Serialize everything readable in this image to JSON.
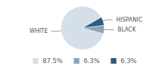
{
  "chart_data": {
    "type": "pie",
    "categories": [
      "WHITE",
      "BLACK",
      "HISPANIC"
    ],
    "values": [
      87.5,
      6.3,
      6.3
    ],
    "value_labels": [
      "87.5%",
      "6.3%",
      "6.3%"
    ],
    "colors": [
      "#d5dfe9",
      "#8ba5bc",
      "#2e5b80"
    ],
    "legend": "bottom"
  }
}
